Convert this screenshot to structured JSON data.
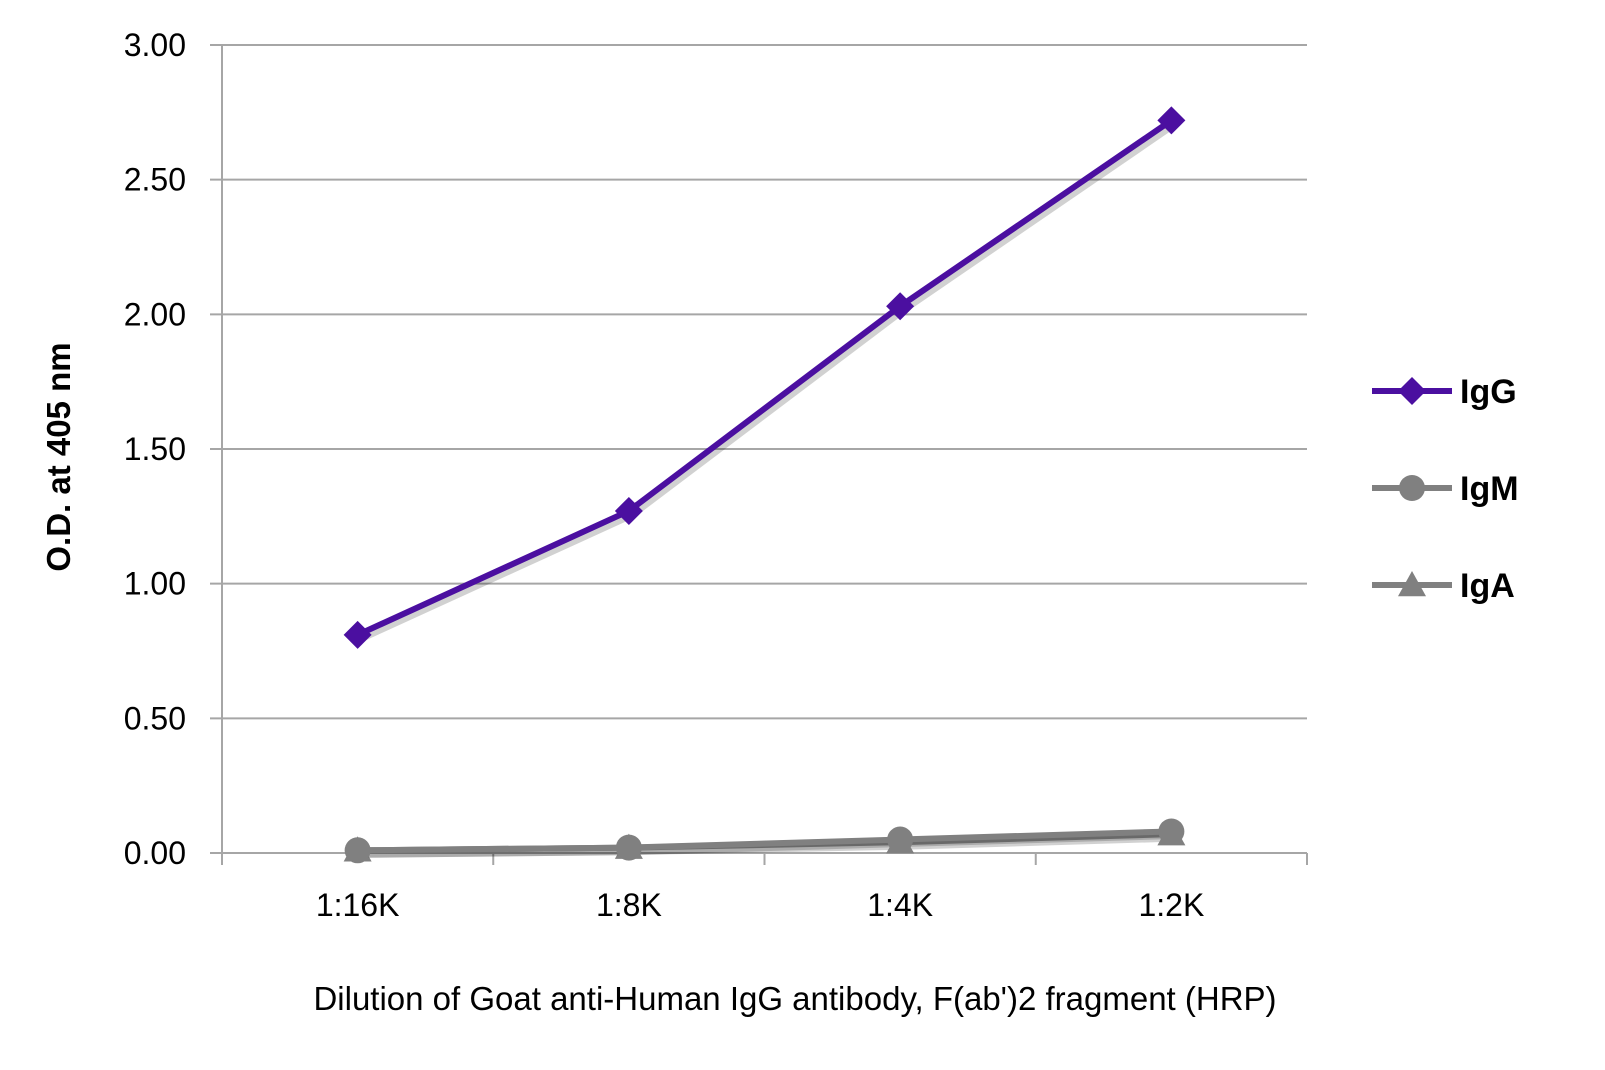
{
  "chart_data": {
    "type": "line",
    "title": "",
    "xlabel": "Dilution of Goat anti-Human IgG antibody, F(ab')2 fragment (HRP)",
    "ylabel": "O.D. at 405 nm",
    "categories": [
      "1:16K",
      "1:8K",
      "1:4K",
      "1:2K"
    ],
    "ylim": [
      0,
      3
    ],
    "yticks": [
      "0.00",
      "0.50",
      "1.00",
      "1.50",
      "2.00",
      "2.50",
      "3.00"
    ],
    "grid": "horizontal",
    "legend_position": "right",
    "series": [
      {
        "name": "IgG",
        "values": [
          0.81,
          1.27,
          2.03,
          2.72
        ],
        "color": "#4B0FA0",
        "marker": "diamond"
      },
      {
        "name": "IgM",
        "values": [
          0.01,
          0.02,
          0.05,
          0.08
        ],
        "color": "#808080",
        "marker": "circle"
      },
      {
        "name": "IgA",
        "values": [
          0.01,
          0.02,
          0.04,
          0.07
        ],
        "color": "#808080",
        "marker": "triangle"
      }
    ]
  }
}
